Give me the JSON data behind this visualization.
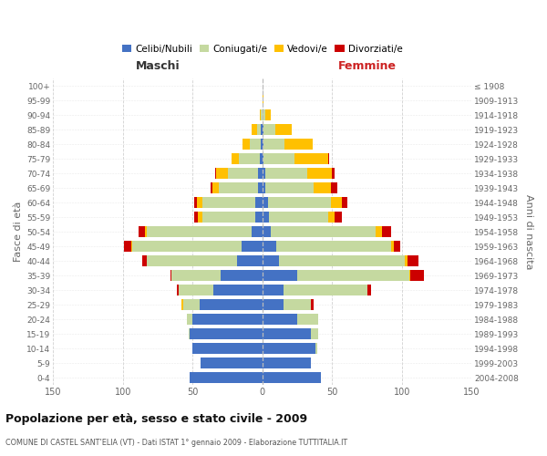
{
  "age_groups": [
    "0-4",
    "5-9",
    "10-14",
    "15-19",
    "20-24",
    "25-29",
    "30-34",
    "35-39",
    "40-44",
    "45-49",
    "50-54",
    "55-59",
    "60-64",
    "65-69",
    "70-74",
    "75-79",
    "80-84",
    "85-89",
    "90-94",
    "95-99",
    "100+"
  ],
  "birth_years": [
    "2004-2008",
    "1999-2003",
    "1994-1998",
    "1989-1993",
    "1984-1988",
    "1979-1983",
    "1974-1978",
    "1969-1973",
    "1964-1968",
    "1959-1963",
    "1954-1958",
    "1949-1953",
    "1944-1948",
    "1939-1943",
    "1934-1938",
    "1929-1933",
    "1924-1928",
    "1919-1923",
    "1914-1918",
    "1909-1913",
    "≤ 1908"
  ],
  "colors": {
    "celibi": "#4472c4",
    "coniugati": "#c5d9a0",
    "vedovi": "#ffc000",
    "divorziati": "#cc0000"
  },
  "maschi": {
    "celibi": [
      52,
      44,
      50,
      52,
      50,
      45,
      35,
      30,
      18,
      15,
      8,
      5,
      5,
      3,
      3,
      2,
      1,
      1,
      0,
      0,
      0
    ],
    "coniugati": [
      0,
      0,
      0,
      1,
      4,
      12,
      25,
      35,
      65,
      78,
      75,
      38,
      38,
      28,
      22,
      15,
      8,
      3,
      1,
      0,
      0
    ],
    "vedovi": [
      0,
      0,
      0,
      0,
      0,
      1,
      0,
      0,
      0,
      1,
      1,
      3,
      4,
      5,
      8,
      5,
      5,
      4,
      1,
      0,
      0
    ],
    "divorziati": [
      0,
      0,
      0,
      0,
      0,
      0,
      1,
      1,
      3,
      5,
      5,
      3,
      2,
      1,
      1,
      0,
      0,
      0,
      0,
      0,
      0
    ]
  },
  "femmine": {
    "celibi": [
      42,
      35,
      38,
      35,
      25,
      15,
      15,
      25,
      12,
      10,
      6,
      5,
      4,
      2,
      2,
      1,
      1,
      1,
      0,
      0,
      0
    ],
    "coniugati": [
      0,
      0,
      1,
      5,
      15,
      20,
      60,
      80,
      90,
      82,
      75,
      42,
      45,
      35,
      30,
      22,
      15,
      8,
      2,
      0,
      0
    ],
    "vedovi": [
      0,
      0,
      0,
      0,
      0,
      0,
      0,
      1,
      2,
      2,
      5,
      5,
      8,
      12,
      18,
      24,
      20,
      12,
      4,
      1,
      0
    ],
    "divorziati": [
      0,
      0,
      0,
      0,
      0,
      2,
      3,
      10,
      8,
      5,
      6,
      5,
      4,
      5,
      2,
      1,
      0,
      0,
      0,
      0,
      0
    ]
  },
  "title": "Popolazione per età, sesso e stato civile - 2009",
  "subtitle": "COMUNE DI CASTEL SANT’ELIA (VT) - Dati ISTAT 1° gennaio 2009 - Elaborazione TUTTITALIA.IT",
  "label_maschi": "Maschi",
  "label_femmine": "Femmine",
  "ylabel_left": "Fasce di età",
  "ylabel_right": "Anni di nascita",
  "xlim": 150,
  "legend_labels": [
    "Celibi/Nubili",
    "Coniugati/e",
    "Vedovi/e",
    "Divorziati/e"
  ]
}
